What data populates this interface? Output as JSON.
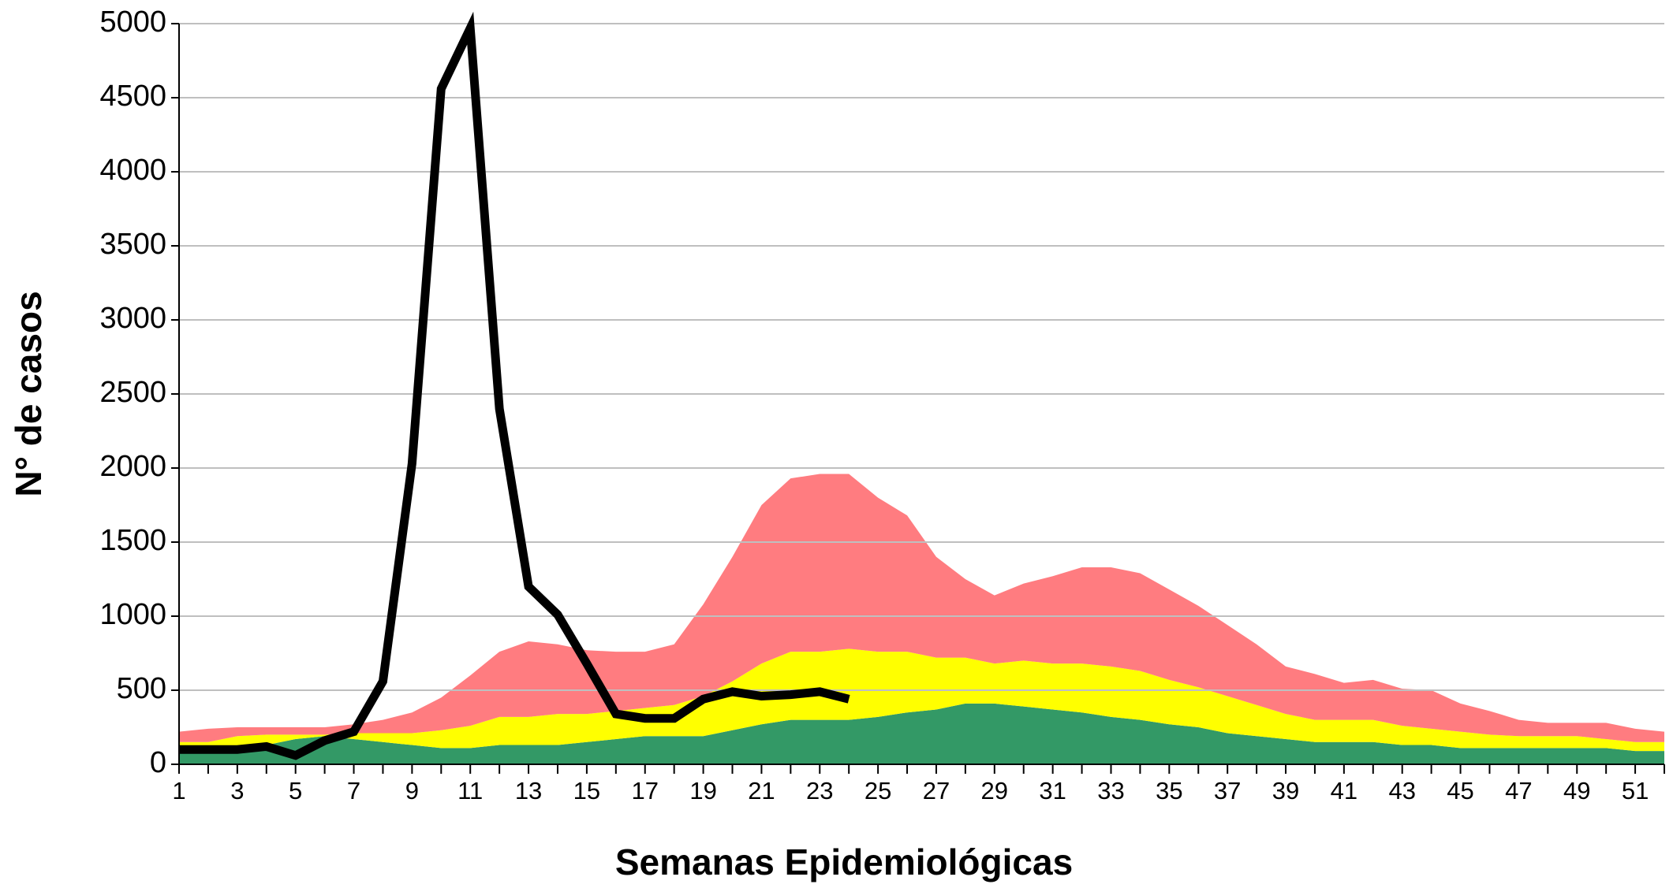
{
  "chart_data": {
    "type": "area_line",
    "x_label": "Semanas Epidemiológicas",
    "y_label": "N° de casos",
    "categories": [
      1,
      null,
      3,
      null,
      5,
      null,
      7,
      null,
      9,
      null,
      11,
      null,
      13,
      null,
      15,
      null,
      17,
      null,
      19,
      null,
      21,
      null,
      23,
      null,
      25,
      null,
      27,
      null,
      29,
      null,
      31,
      null,
      33,
      null,
      35,
      null,
      37,
      null,
      39,
      null,
      41,
      null,
      43,
      null,
      45,
      null,
      47,
      null,
      49,
      null,
      51,
      null
    ],
    "ylim": [
      0,
      5000
    ],
    "yticks": [
      0,
      500,
      1000,
      1500,
      2000,
      2500,
      3000,
      3500,
      4000,
      4500,
      5000
    ],
    "grid": true,
    "series": [
      {
        "kind": "stacked_area",
        "color": "#339966",
        "values": [
          100,
          100,
          110,
          130,
          170,
          190,
          170,
          150,
          130,
          110,
          110,
          130,
          130,
          130,
          150,
          170,
          190,
          190,
          190,
          230,
          270,
          300,
          300,
          300,
          320,
          350,
          370,
          410,
          410,
          390,
          370,
          350,
          320,
          300,
          270,
          250,
          210,
          190,
          170,
          150,
          150,
          150,
          130,
          130,
          110,
          110,
          110,
          110,
          110,
          110,
          90,
          90
        ]
      },
      {
        "kind": "stacked_area",
        "color": "#ffff00",
        "values": [
          50,
          50,
          80,
          70,
          30,
          10,
          40,
          60,
          80,
          120,
          150,
          190,
          190,
          210,
          190,
          190,
          190,
          210,
          270,
          330,
          410,
          460,
          460,
          480,
          440,
          410,
          350,
          310,
          270,
          310,
          310,
          330,
          340,
          330,
          300,
          270,
          250,
          210,
          170,
          150,
          150,
          150,
          130,
          110,
          110,
          90,
          80,
          80,
          80,
          60,
          60,
          60
        ]
      },
      {
        "kind": "stacked_area",
        "color": "#ff7c80",
        "values": [
          70,
          90,
          60,
          50,
          50,
          50,
          60,
          90,
          140,
          220,
          340,
          440,
          510,
          470,
          430,
          400,
          380,
          410,
          620,
          840,
          1070,
          1170,
          1200,
          1180,
          1040,
          920,
          680,
          530,
          460,
          520,
          590,
          650,
          670,
          660,
          610,
          550,
          480,
          410,
          320,
          310,
          250,
          270,
          250,
          260,
          190,
          160,
          110,
          90,
          90,
          110,
          90,
          70
        ]
      },
      {
        "kind": "line",
        "color": "#000000",
        "values": [
          100,
          100,
          100,
          120,
          60,
          160,
          220,
          560,
          2030,
          4560,
          4970,
          2400,
          1200,
          1010,
          680,
          340,
          310,
          310,
          440,
          490,
          460,
          470,
          490,
          440,
          null,
          null,
          null,
          null,
          null,
          null,
          null,
          null,
          null,
          null,
          null,
          null,
          null,
          null,
          null,
          null,
          null,
          null,
          null,
          null,
          null,
          null,
          null,
          null,
          null,
          null,
          null,
          null
        ]
      }
    ]
  }
}
